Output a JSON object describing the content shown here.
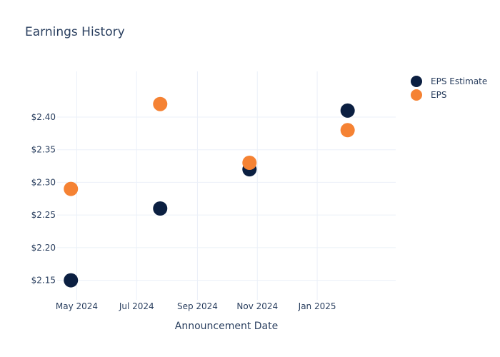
{
  "chart_data": {
    "type": "scatter",
    "title": "Earnings History",
    "xlabel": "Announcement Date",
    "ylabel": "",
    "x_ticks": [
      {
        "date": "2024-05-01",
        "label": "May 2024"
      },
      {
        "date": "2024-07-01",
        "label": "Jul 2024"
      },
      {
        "date": "2024-09-01",
        "label": "Sep 2024"
      },
      {
        "date": "2024-11-01",
        "label": "Nov 2024"
      },
      {
        "date": "2025-01-01",
        "label": "Jan 2025"
      }
    ],
    "y_ticks": [
      {
        "value": 2.15,
        "label": "$2.15"
      },
      {
        "value": 2.2,
        "label": "$2.20"
      },
      {
        "value": 2.25,
        "label": "$2.25"
      },
      {
        "value": 2.3,
        "label": "$2.30"
      },
      {
        "value": 2.35,
        "label": "$2.35"
      },
      {
        "value": 2.4,
        "label": "$2.40"
      }
    ],
    "xlim": [
      "2024-04-11",
      "2025-03-22"
    ],
    "ylim": [
      2.12,
      2.47
    ],
    "grid": true,
    "legend_position": "top-right",
    "series": [
      {
        "name": "EPS Estimate",
        "color": "#0b1f41",
        "points": [
          {
            "x": "2024-04-25",
            "y": 2.15
          },
          {
            "x": "2024-07-25",
            "y": 2.26
          },
          {
            "x": "2024-10-24",
            "y": 2.32
          },
          {
            "x": "2025-02-01",
            "y": 2.41
          }
        ]
      },
      {
        "name": "EPS",
        "color": "#f58233",
        "points": [
          {
            "x": "2024-04-25",
            "y": 2.29
          },
          {
            "x": "2024-07-25",
            "y": 2.42
          },
          {
            "x": "2024-10-24",
            "y": 2.33
          },
          {
            "x": "2025-02-01",
            "y": 2.38
          }
        ]
      }
    ]
  }
}
